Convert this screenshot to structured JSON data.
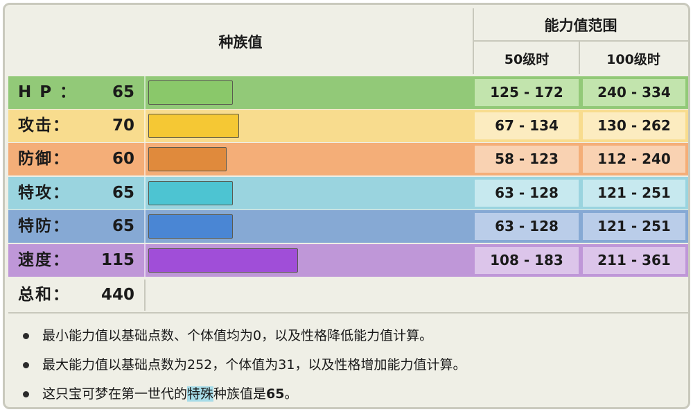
{
  "header": {
    "base_stats": "种族值",
    "range": "能力值范围",
    "lv50": "50级时",
    "lv100": "100级时"
  },
  "chart_data": {
    "type": "bar",
    "categories": [
      "HP",
      "攻击",
      "防御",
      "特攻",
      "特防",
      "速度"
    ],
    "values": [
      65,
      70,
      60,
      65,
      65,
      115
    ],
    "colors": [
      "#8ac86a",
      "#f5c834",
      "#e08a3c",
      "#4dc4d2",
      "#4a86d4",
      "#a04ed8"
    ]
  },
  "stats": [
    {
      "name": "H P ：",
      "value": "65",
      "lv50": "125 - 172",
      "lv100": "240 - 334",
      "row_color": "#92c978",
      "cell_color": "#c2e4ad"
    },
    {
      "name": "攻击：",
      "value": "70",
      "lv50": "67 - 134",
      "lv100": "130 - 262",
      "row_color": "#f8dc8e",
      "cell_color": "#fcecc0"
    },
    {
      "name": "防御：",
      "value": "60",
      "lv50": "58 - 123",
      "lv100": "112 - 240",
      "row_color": "#f4ae78",
      "cell_color": "#f9d2b2"
    },
    {
      "name": "特攻：",
      "value": "65",
      "lv50": "63 - 128",
      "lv100": "121 - 251",
      "row_color": "#9ad4df",
      "cell_color": "#c7e9ef"
    },
    {
      "name": "特防：",
      "value": "65",
      "lv50": "63 - 128",
      "lv100": "121 - 251",
      "row_color": "#86a9d4",
      "cell_color": "#bacde9"
    },
    {
      "name": "速度：",
      "value": "115",
      "lv50": "108 - 183",
      "lv100": "211 - 361",
      "row_color": "#bf97d8",
      "cell_color": "#dcc5ea"
    }
  ],
  "total": {
    "name": "总和：",
    "value": "440"
  },
  "notes": {
    "line1": "最小能力值以基础点数、个体值均为0，以及性格降低能力值计算。",
    "line2": "最大能力值以基础点数为252，个体值为31，以及性格增加能力值计算。",
    "line3_a": "这只宝可梦在第一世代的",
    "line3_hl": "特殊",
    "line3_b": "种族值是",
    "line3_num": "65",
    "line3_end": "。"
  }
}
